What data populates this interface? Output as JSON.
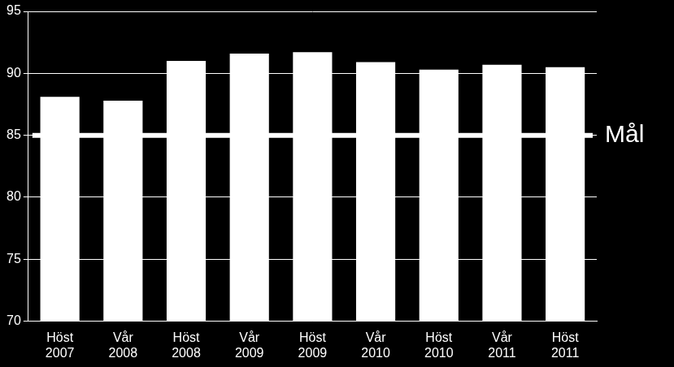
{
  "chart_data": {
    "type": "bar",
    "categories": [
      "Höst 2007",
      "Vår 2008",
      "Höst 2008",
      "Vår 2009",
      "Höst 2009",
      "Vår 2010",
      "Höst 2010",
      "Vår 2011",
      "Höst 2011"
    ],
    "values": [
      88.1,
      87.8,
      91.0,
      91.6,
      91.7,
      90.9,
      90.3,
      90.7,
      90.5
    ],
    "color": "#ffffff",
    "ylim": [
      70,
      95
    ],
    "yticks": [
      70,
      75,
      80,
      85,
      90,
      95
    ],
    "grid": true,
    "target": {
      "value": 85,
      "label": "Mål"
    }
  }
}
